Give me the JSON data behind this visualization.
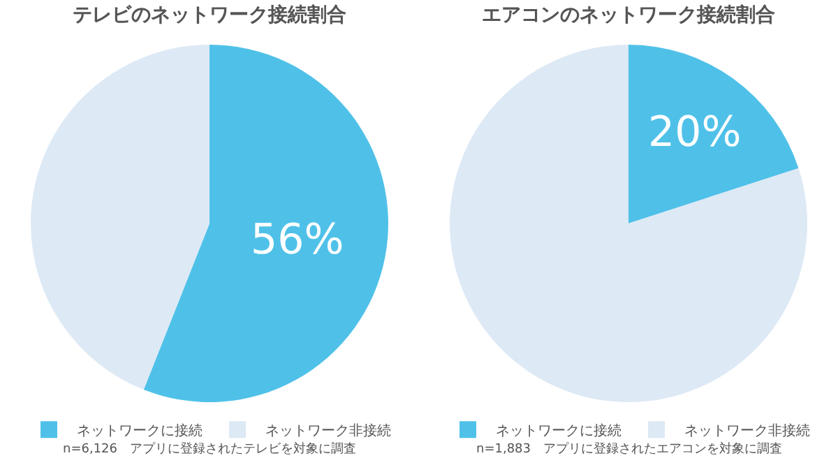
{
  "chart_data": [
    {
      "type": "pie",
      "title": "テレビのネットワーク接続割合",
      "categories": [
        "ネットワークに接続",
        "ネットワーク非接続"
      ],
      "values": [
        56,
        44
      ],
      "colors": [
        "#4fc1e9",
        "#dde9f5"
      ],
      "value_labels": [
        "56%",
        null
      ],
      "legend": "bottom",
      "annotations": [
        "n=6,126　アプリに登録されたテレビを対象に調査"
      ]
    },
    {
      "type": "pie",
      "title": "エアコンのネットワーク接続割合",
      "categories": [
        "ネットワークに接続",
        "ネットワーク非接続"
      ],
      "values": [
        20,
        80
      ],
      "colors": [
        "#4fc1e9",
        "#dde9f5"
      ],
      "value_labels": [
        "20%",
        null
      ],
      "legend": "bottom",
      "annotations": [
        "n=1,883　アプリに登録されたエアコンを対象に調査"
      ]
    }
  ]
}
